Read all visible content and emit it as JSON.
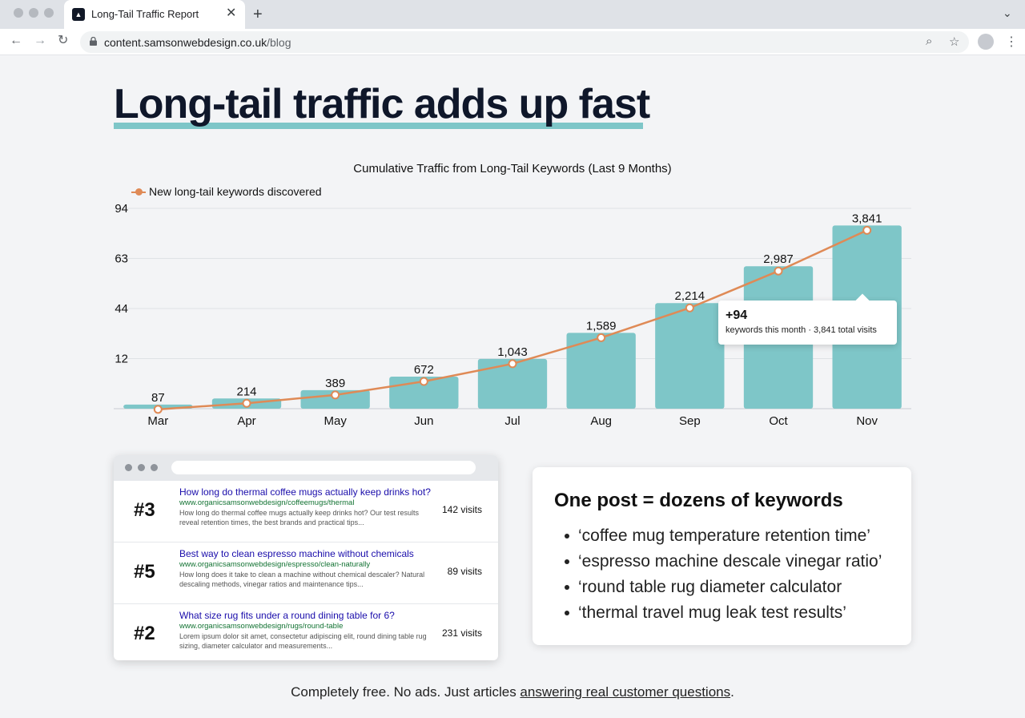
{
  "browser": {
    "tab_title": "Long-Tail Traffic Report",
    "url_host": "content.samsonwebdesign.co.uk",
    "url_path": "/blog"
  },
  "page": {
    "headline": "Long-tail traffic adds up fast",
    "footer_plain": "Completely free. No ads. Just articles ",
    "footer_link": "answering real customer questions",
    "footer_end": "."
  },
  "chart_data": {
    "type": "bar",
    "title": "Cumulative Traffic from Long-Tail Keywords (Last 9 Months)",
    "categories": [
      "Mar",
      "Apr",
      "May",
      "Jun",
      "Jul",
      "Aug",
      "Sep",
      "Oct",
      "Nov"
    ],
    "y_tick_labels": [
      "94",
      "63",
      "44",
      "12"
    ],
    "series": [
      {
        "type": "bar",
        "values": [
          87,
          214,
          389,
          672,
          1043,
          1589,
          2214,
          2987,
          3841
        ]
      },
      {
        "type": "line",
        "name": "New long-tail keywords discovered",
        "values": [
          87,
          214,
          389,
          672,
          1043,
          1589,
          2214,
          2987,
          3841
        ]
      }
    ],
    "data_labels": [
      "87",
      "214",
      "389",
      "672",
      "1,043",
      "1,589",
      "2,214",
      "2,987",
      "3,841"
    ],
    "ylim": [
      0,
      4200
    ],
    "grid": true,
    "legend_position": "top-left",
    "colors": {
      "bar": "#7ec6c8",
      "line": "#df8a56"
    },
    "tooltip": {
      "category": "Nov",
      "value": "+94",
      "text": "keywords this month · 3,841 total visits"
    }
  },
  "serp": {
    "results": [
      {
        "rank": "#3",
        "title": "How long do thermal coffee mugs actually keep drinks hot?",
        "link": "www.organicsamsonwebdesign/coffeemugs/thermal",
        "snippet": "How long do thermal coffee mugs actually keep drinks hot? Our test results reveal retention times, the best brands and practical tips...",
        "visits": "142 visits"
      },
      {
        "rank": "#5",
        "title": "Best way to clean espresso machine without chemicals",
        "link": "www.organicsamsonwebdesign/espresso/clean-naturally",
        "snippet": "How long does it take to clean a machine without chemical descaler? Natural descaling methods, vinegar ratios and maintenance tips...",
        "visits": "89 visits"
      },
      {
        "rank": "#2",
        "title": "What size rug fits under a round dining table for 6?",
        "link": "www.organicsamsonwebdesign/rugs/round-table",
        "snippet": "Lorem ipsum dolor sit amet, consectetur adipiscing elit, round dining table rug sizing, diameter calculator and measurements...",
        "visits": "231 visits"
      }
    ]
  },
  "keywords_card": {
    "title": "One post = dozens of keywords",
    "items": [
      "‘coffee mug temperature retention time’",
      "‘espresso machine descale vinegar ratio’",
      "‘round table rug diameter calculator",
      "‘thermal travel mug leak test results’"
    ]
  },
  "icons": {
    "back": "arrow-left-icon",
    "forward": "arrow-right-icon",
    "reload": "reload-icon",
    "zoom": "magnifier-icon",
    "bookmark": "star-icon",
    "profile": "profile-icon",
    "menu": "kebab-menu-icon"
  }
}
